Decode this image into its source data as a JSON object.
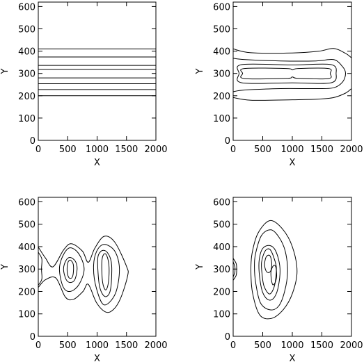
{
  "figure": {
    "background": "#ffffff",
    "line_color": "#000000"
  },
  "chart_data": [
    {
      "type": "line",
      "title": "",
      "xlabel": "X",
      "ylabel": "Y",
      "xlim": [
        0,
        2000
      ],
      "ylim": [
        0,
        620
      ],
      "xticks": [
        0,
        500,
        1000,
        1500,
        2000
      ],
      "yticks": [
        0,
        100,
        200,
        300,
        400,
        500,
        600
      ],
      "grid": false,
      "contours": [
        {
          "shape": "hline",
          "y": 200
        },
        {
          "shape": "hline",
          "y": 228
        },
        {
          "shape": "hline",
          "y": 254
        },
        {
          "shape": "hline",
          "y": 280
        },
        {
          "shape": "hline",
          "y": 318
        },
        {
          "shape": "hline",
          "y": 336
        },
        {
          "shape": "hline",
          "y": 374
        },
        {
          "shape": "hline",
          "y": 410
        }
      ]
    },
    {
      "type": "line",
      "title": "",
      "xlabel": "X",
      "ylabel": "Y",
      "xlim": [
        0,
        2000
      ],
      "ylim": [
        0,
        620
      ],
      "xticks": [
        0,
        500,
        1000,
        1500,
        2000
      ],
      "yticks": [
        0,
        100,
        200,
        300,
        400,
        500,
        600
      ],
      "grid": false,
      "contours": [
        {
          "shape": "curve",
          "closed": false,
          "points": [
            [
              0,
              410
            ],
            [
              300,
              393
            ],
            [
              1000,
              392
            ],
            [
              1450,
              400
            ],
            [
              1700,
              412
            ],
            [
              1900,
              390
            ],
            [
              2000,
              370
            ]
          ]
        },
        {
          "shape": "curve",
          "closed": false,
          "points": [
            [
              0,
              192
            ],
            [
              300,
              180
            ],
            [
              1000,
              182
            ],
            [
              1450,
              185
            ],
            [
              1700,
              192
            ],
            [
              1900,
              212
            ],
            [
              2000,
              232
            ]
          ]
        },
        {
          "shape": "curve",
          "closed": false,
          "points": [
            [
              0,
              368
            ],
            [
              200,
              362
            ],
            [
              800,
              356
            ],
            [
              1400,
              356
            ],
            [
              1700,
              362
            ],
            [
              1850,
              330
            ],
            [
              1900,
              300
            ],
            [
              1850,
              262
            ],
            [
              1700,
              236
            ],
            [
              1400,
              232
            ],
            [
              800,
              232
            ],
            [
              200,
              226
            ],
            [
              0,
              218
            ]
          ]
        },
        {
          "shape": "curve",
          "closed": true,
          "points": [
            [
              100,
              300
            ],
            [
              150,
              340
            ],
            [
              1000,
              338
            ],
            [
              1650,
              340
            ],
            [
              1740,
              300
            ],
            [
              1650,
              258
            ],
            [
              1000,
              258
            ],
            [
              150,
              258
            ]
          ]
        },
        {
          "shape": "curve",
          "closed": true,
          "points": [
            [
              160,
              300
            ],
            [
              190,
              322
            ],
            [
              900,
              322
            ],
            [
              1000,
              316
            ],
            [
              1100,
              322
            ],
            [
              1610,
              322
            ],
            [
              1640,
              300
            ],
            [
              1610,
              277
            ],
            [
              1100,
              278
            ],
            [
              1000,
              284
            ],
            [
              900,
              278
            ],
            [
              190,
              277
            ]
          ]
        }
      ]
    },
    {
      "type": "line",
      "title": "",
      "xlabel": "X",
      "ylabel": "Y",
      "xlim": [
        0,
        2000
      ],
      "ylim": [
        0,
        620
      ],
      "xticks": [
        0,
        500,
        1000,
        1500,
        2000
      ],
      "yticks": [
        0,
        100,
        200,
        300,
        400,
        500,
        600
      ],
      "grid": false,
      "contours": [
        {
          "shape": "curve",
          "closed": false,
          "points": [
            [
              0,
              375
            ],
            [
              60,
              345
            ],
            [
              55,
              300
            ],
            [
              60,
              255
            ],
            [
              0,
              228
            ]
          ]
        },
        {
          "shape": "curve",
          "closed": false,
          "points": [
            [
              0,
              398
            ],
            [
              120,
              350
            ],
            [
              250,
              310
            ],
            [
              430,
              385
            ],
            [
              560,
              413
            ],
            [
              750,
              380
            ],
            [
              850,
              330
            ],
            [
              960,
              392
            ],
            [
              1120,
              446
            ],
            [
              1300,
              420
            ],
            [
              1500,
              312
            ],
            [
              1520,
              270
            ],
            [
              1400,
              170
            ],
            [
              1280,
              120
            ],
            [
              1150,
              108
            ],
            [
              990,
              150
            ],
            [
              850,
              232
            ],
            [
              760,
              200
            ],
            [
              600,
              165
            ],
            [
              460,
              175
            ],
            [
              300,
              260
            ],
            [
              120,
              252
            ],
            [
              0,
              218
            ]
          ]
        },
        {
          "shape": "curve",
          "closed": true,
          "points": [
            [
              360,
              300
            ],
            [
              420,
              360
            ],
            [
              540,
              395
            ],
            [
              690,
              368
            ],
            [
              780,
              300
            ],
            [
              690,
              230
            ],
            [
              540,
              200
            ],
            [
              420,
              222
            ]
          ]
        },
        {
          "shape": "curve",
          "closed": true,
          "points": [
            [
              940,
              305
            ],
            [
              990,
              378
            ],
            [
              1120,
              410
            ],
            [
              1300,
              380
            ],
            [
              1380,
              300
            ],
            [
              1310,
              190
            ],
            [
              1120,
              140
            ],
            [
              990,
              212
            ]
          ]
        },
        {
          "shape": "curve",
          "closed": true,
          "points": [
            [
              430,
              300
            ],
            [
              470,
              338
            ],
            [
              540,
              352
            ],
            [
              630,
              335
            ],
            [
              660,
              300
            ],
            [
              620,
              252
            ],
            [
              540,
              240
            ],
            [
              470,
              255
            ]
          ]
        },
        {
          "shape": "curve",
          "closed": true,
          "points": [
            [
              1010,
              340
            ],
            [
              1060,
              378
            ],
            [
              1150,
              380
            ],
            [
              1230,
              345
            ],
            [
              1250,
              290
            ],
            [
              1220,
              200
            ],
            [
              1130,
              178
            ],
            [
              1040,
              225
            ]
          ]
        },
        {
          "shape": "curve",
          "closed": true,
          "points": [
            [
              490,
              300
            ],
            [
              505,
              330
            ],
            [
              545,
              340
            ],
            [
              590,
              325
            ],
            [
              600,
              300
            ],
            [
              585,
              268
            ],
            [
              545,
              258
            ],
            [
              505,
              270
            ]
          ]
        },
        {
          "shape": "curve",
          "closed": true,
          "points": [
            [
              1080,
              330
            ],
            [
              1110,
              365
            ],
            [
              1160,
              362
            ],
            [
              1200,
              320
            ],
            [
              1200,
              260
            ],
            [
              1170,
              215
            ],
            [
              1130,
              210
            ],
            [
              1090,
              250
            ]
          ]
        }
      ]
    },
    {
      "type": "line",
      "title": "",
      "xlabel": "X",
      "ylabel": "Y",
      "xlim": [
        0,
        2000
      ],
      "ylim": [
        0,
        620
      ],
      "xticks": [
        0,
        500,
        1000,
        1500,
        2000
      ],
      "yticks": [
        0,
        100,
        200,
        300,
        400,
        500,
        600
      ],
      "grid": false,
      "contours": [
        {
          "shape": "curve",
          "closed": false,
          "points": [
            [
              0,
              348
            ],
            [
              50,
              325
            ],
            [
              60,
              300
            ],
            [
              50,
              272
            ],
            [
              0,
              250
            ]
          ]
        },
        {
          "shape": "curve",
          "closed": false,
          "points": [
            [
              0,
              332
            ],
            [
              28,
              312
            ],
            [
              30,
              300
            ],
            [
              28,
              285
            ],
            [
              0,
              265
            ]
          ]
        },
        {
          "shape": "curve",
          "closed": true,
          "points": [
            [
              320,
              370
            ],
            [
              420,
              460
            ],
            [
              620,
              516
            ],
            [
              830,
              480
            ],
            [
              1000,
              400
            ],
            [
              1080,
              290
            ],
            [
              1000,
              190
            ],
            [
              850,
              120
            ],
            [
              650,
              80
            ],
            [
              450,
              95
            ],
            [
              330,
              190
            ],
            [
              300,
              290
            ]
          ]
        },
        {
          "shape": "curve",
          "closed": true,
          "points": [
            [
              380,
              370
            ],
            [
              480,
              450
            ],
            [
              640,
              475
            ],
            [
              780,
              440
            ],
            [
              880,
              380
            ],
            [
              920,
              290
            ],
            [
              870,
              200
            ],
            [
              770,
              135
            ],
            [
              620,
              118
            ],
            [
              460,
              150
            ],
            [
              380,
              240
            ],
            [
              360,
              310
            ]
          ]
        },
        {
          "shape": "curve",
          "closed": true,
          "points": [
            [
              440,
              340
            ],
            [
              500,
              392
            ],
            [
              620,
              405
            ],
            [
              720,
              380
            ],
            [
              790,
              310
            ],
            [
              770,
              230
            ],
            [
              700,
              175
            ],
            [
              600,
              162
            ],
            [
              500,
              195
            ],
            [
              445,
              270
            ]
          ]
        },
        {
          "shape": "curve",
          "closed": true,
          "points": [
            [
              480,
              330
            ],
            [
              540,
              380
            ],
            [
              620,
              388
            ],
            [
              690,
              350
            ],
            [
              730,
              305
            ],
            [
              710,
              240
            ],
            [
              660,
              200
            ],
            [
              600,
              190
            ],
            [
              520,
              225
            ],
            [
              490,
              275
            ]
          ]
        },
        {
          "shape": "curve",
          "closed": true,
          "points": [
            [
              530,
              320
            ],
            [
              560,
              355
            ],
            [
              620,
              360
            ],
            [
              650,
              330
            ],
            [
              645,
              300
            ],
            [
              610,
              285
            ],
            [
              560,
              290
            ]
          ]
        },
        {
          "shape": "curve",
          "closed": true,
          "points": [
            [
              640,
              290
            ],
            [
              680,
              315
            ],
            [
              720,
              310
            ],
            [
              735,
              270
            ],
            [
              710,
              240
            ],
            [
              670,
              230
            ],
            [
              645,
              255
            ]
          ]
        }
      ]
    }
  ]
}
